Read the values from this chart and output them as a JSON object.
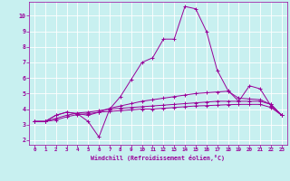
{
  "xlabel": "Windchill (Refroidissement éolien,°C)",
  "background_color": "#c8f0f0",
  "line_color": "#990099",
  "grid_color": "#ffffff",
  "xlim": [
    -0.5,
    23.5
  ],
  "ylim": [
    1.7,
    10.9
  ],
  "yticks": [
    2,
    3,
    4,
    5,
    6,
    7,
    8,
    9,
    10
  ],
  "xticks": [
    0,
    1,
    2,
    3,
    4,
    5,
    6,
    7,
    8,
    9,
    10,
    11,
    12,
    13,
    14,
    15,
    16,
    17,
    18,
    19,
    20,
    21,
    22,
    23
  ],
  "series": [
    [
      3.2,
      3.2,
      3.6,
      3.8,
      3.7,
      3.2,
      2.2,
      4.0,
      4.8,
      5.9,
      7.0,
      7.3,
      8.5,
      8.5,
      10.6,
      10.45,
      9.0,
      6.5,
      5.2,
      4.5,
      5.5,
      5.3,
      4.2,
      3.6
    ],
    [
      3.2,
      3.2,
      3.6,
      3.8,
      3.7,
      3.6,
      3.8,
      4.05,
      4.2,
      4.35,
      4.5,
      4.6,
      4.7,
      4.8,
      4.9,
      5.0,
      5.05,
      5.1,
      5.15,
      4.7,
      4.65,
      4.6,
      4.3,
      3.6
    ],
    [
      3.2,
      3.2,
      3.4,
      3.6,
      3.75,
      3.8,
      3.9,
      4.0,
      4.05,
      4.1,
      4.15,
      4.2,
      4.25,
      4.3,
      4.35,
      4.4,
      4.45,
      4.5,
      4.5,
      4.5,
      4.5,
      4.5,
      4.3,
      3.6
    ],
    [
      3.2,
      3.2,
      3.3,
      3.5,
      3.65,
      3.7,
      3.8,
      3.85,
      3.9,
      3.95,
      4.0,
      4.0,
      4.05,
      4.1,
      4.15,
      4.2,
      4.22,
      4.25,
      4.28,
      4.3,
      4.3,
      4.3,
      4.1,
      3.6
    ]
  ]
}
